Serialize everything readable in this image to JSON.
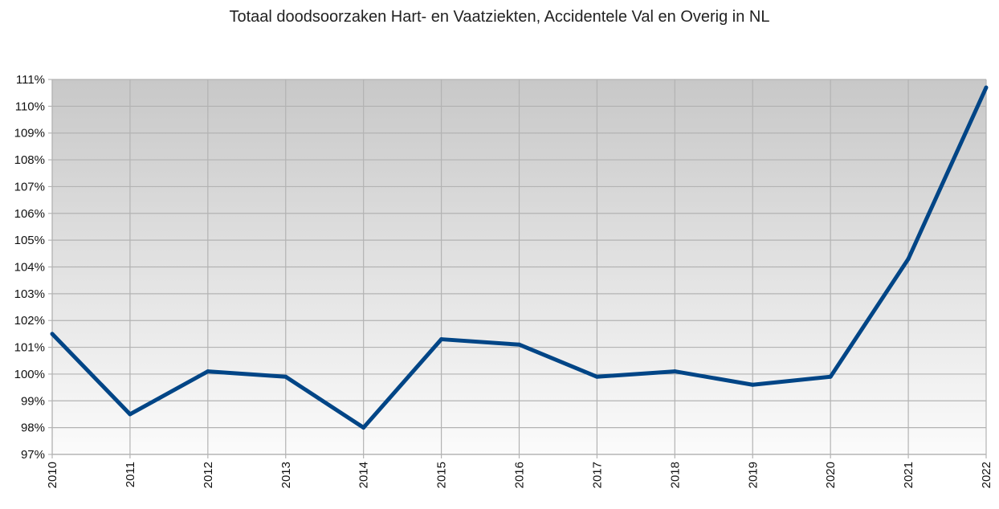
{
  "chart_data": {
    "type": "line",
    "title": "Totaal doodsoorzaken Hart- en Vaatziekten, Accidentele Val en Overig in NL",
    "xlabel": "",
    "ylabel": "",
    "categories": [
      "2010",
      "2011",
      "2012",
      "2013",
      "2014",
      "2015",
      "2016",
      "2017",
      "2018",
      "2019",
      "2020",
      "2021",
      "2022"
    ],
    "series": [
      {
        "values": [
          101.5,
          98.5,
          100.1,
          99.9,
          98.0,
          101.3,
          101.1,
          99.9,
          100.1,
          99.6,
          99.9,
          104.3,
          110.7
        ],
        "color": "#004586"
      }
    ],
    "ylim": [
      97,
      111
    ],
    "yticks": [
      97,
      98,
      99,
      100,
      101,
      102,
      103,
      104,
      105,
      106,
      107,
      108,
      109,
      110,
      111
    ],
    "ytick_labels": [
      "97%",
      "98%",
      "99%",
      "100%",
      "101%",
      "102%",
      "103%",
      "104%",
      "105%",
      "106%",
      "107%",
      "108%",
      "109%",
      "110%",
      "111%"
    ],
    "grid": true,
    "legend": false,
    "background_gradient": [
      "#c8c8c8",
      "#fbfbfb"
    ]
  }
}
